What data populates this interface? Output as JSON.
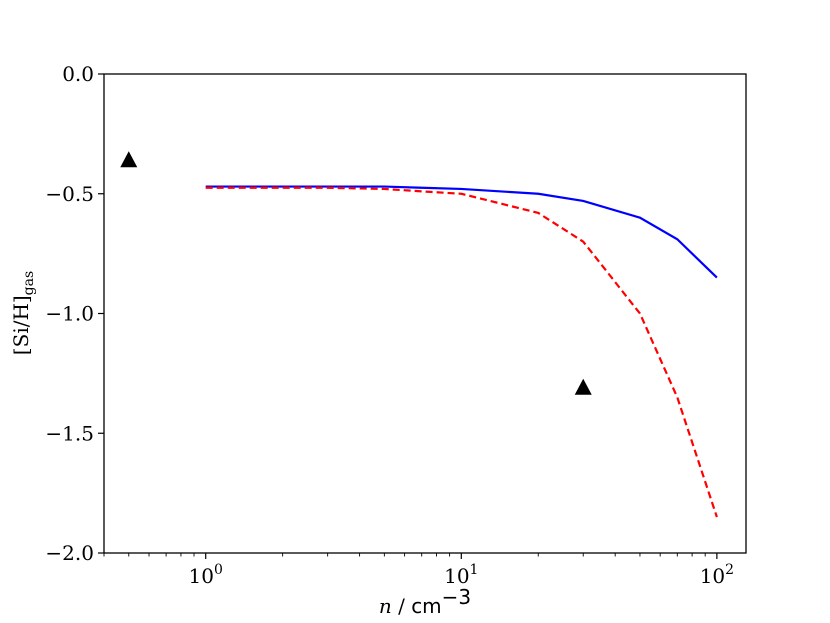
{
  "chart_data": {
    "type": "line",
    "xlabel": "n / cm−3",
    "xlabel_parts": {
      "var": "n",
      "sep": " / ",
      "unit": "cm",
      "exp": "−3"
    },
    "ylabel": "[Si/H]gas",
    "ylabel_parts": {
      "main": "[Si/H]",
      "sub": "gas"
    },
    "x_scale": "log",
    "xlim": [
      0.4,
      130
    ],
    "ylim": [
      -2.0,
      0.0
    ],
    "x_ticks": [
      {
        "value": 1,
        "base": "10",
        "exp": "0"
      },
      {
        "value": 10,
        "base": "10",
        "exp": "1"
      },
      {
        "value": 100,
        "base": "10",
        "exp": "2"
      }
    ],
    "y_ticks": [
      {
        "value": 0.0,
        "label": "0.0"
      },
      {
        "value": -0.5,
        "label": "−0.5"
      },
      {
        "value": -1.0,
        "label": "−1.0"
      },
      {
        "value": -1.5,
        "label": "−1.5"
      },
      {
        "value": -2.0,
        "label": "−2.0"
      }
    ],
    "grid": false,
    "legend": "none",
    "series": [
      {
        "style": "solid",
        "color": "#0000ff",
        "x": [
          1,
          2,
          3,
          5,
          7,
          10,
          20,
          30,
          50,
          70,
          100
        ],
        "y": [
          -0.47,
          -0.47,
          -0.47,
          -0.47,
          -0.475,
          -0.48,
          -0.5,
          -0.53,
          -0.6,
          -0.69,
          -0.85
        ]
      },
      {
        "style": "dashed",
        "color": "#ff0000",
        "x": [
          1,
          2,
          3,
          5,
          7,
          10,
          20,
          30,
          50,
          70,
          100
        ],
        "y": [
          -0.475,
          -0.475,
          -0.475,
          -0.48,
          -0.49,
          -0.5,
          -0.58,
          -0.7,
          -1.0,
          -1.35,
          -1.85
        ]
      },
      {
        "style": "markers",
        "marker": "triangle",
        "color": "#000000",
        "x": [
          0.5,
          30
        ],
        "y": [
          -0.36,
          -1.31
        ]
      }
    ]
  }
}
